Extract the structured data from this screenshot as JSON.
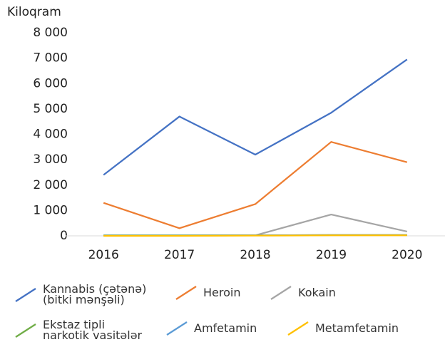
{
  "chart_data": {
    "type": "line",
    "y_label": "Kiloqram",
    "categories": [
      "2016",
      "2017",
      "2018",
      "2019",
      "2020"
    ],
    "series": [
      {
        "name": "Kannabis (çətənə) (bitki mənşəli)",
        "color": "#4472c4",
        "values": [
          2400,
          4700,
          3200,
          4850,
          6950
        ]
      },
      {
        "name": "Heroin",
        "color": "#ed7d31",
        "values": [
          1300,
          300,
          1250,
          3700,
          2900
        ]
      },
      {
        "name": "Kokain",
        "color": "#a5a5a5",
        "values": [
          10,
          10,
          20,
          840,
          170
        ]
      },
      {
        "name": "Ekstaz tipli narkotik vasitələr",
        "color": "#70ad47",
        "values": [
          20,
          20,
          20,
          30,
          30
        ]
      },
      {
        "name": "Amfetamin",
        "color": "#5b9bd5",
        "values": [
          10,
          10,
          20,
          30,
          30
        ]
      },
      {
        "name": "Metamfetamin",
        "color": "#ffc000",
        "values": [
          0,
          0,
          10,
          20,
          20
        ]
      }
    ],
    "ylim": [
      0,
      8000
    ],
    "yticks": [
      0,
      {
        "value": 1000,
        "label": "1 000"
      },
      {
        "value": 2000,
        "label": "2 000"
      },
      {
        "value": 3000,
        "label": "3 000"
      },
      {
        "value": 4000,
        "label": "4 000"
      },
      {
        "value": 5000,
        "label": "5 000"
      },
      {
        "value": 6000,
        "label": "6 000"
      },
      {
        "value": 7000,
        "label": "7 000"
      },
      {
        "value": 8000,
        "label": "8 000"
      }
    ],
    "grid": false,
    "legend": "bottom"
  }
}
